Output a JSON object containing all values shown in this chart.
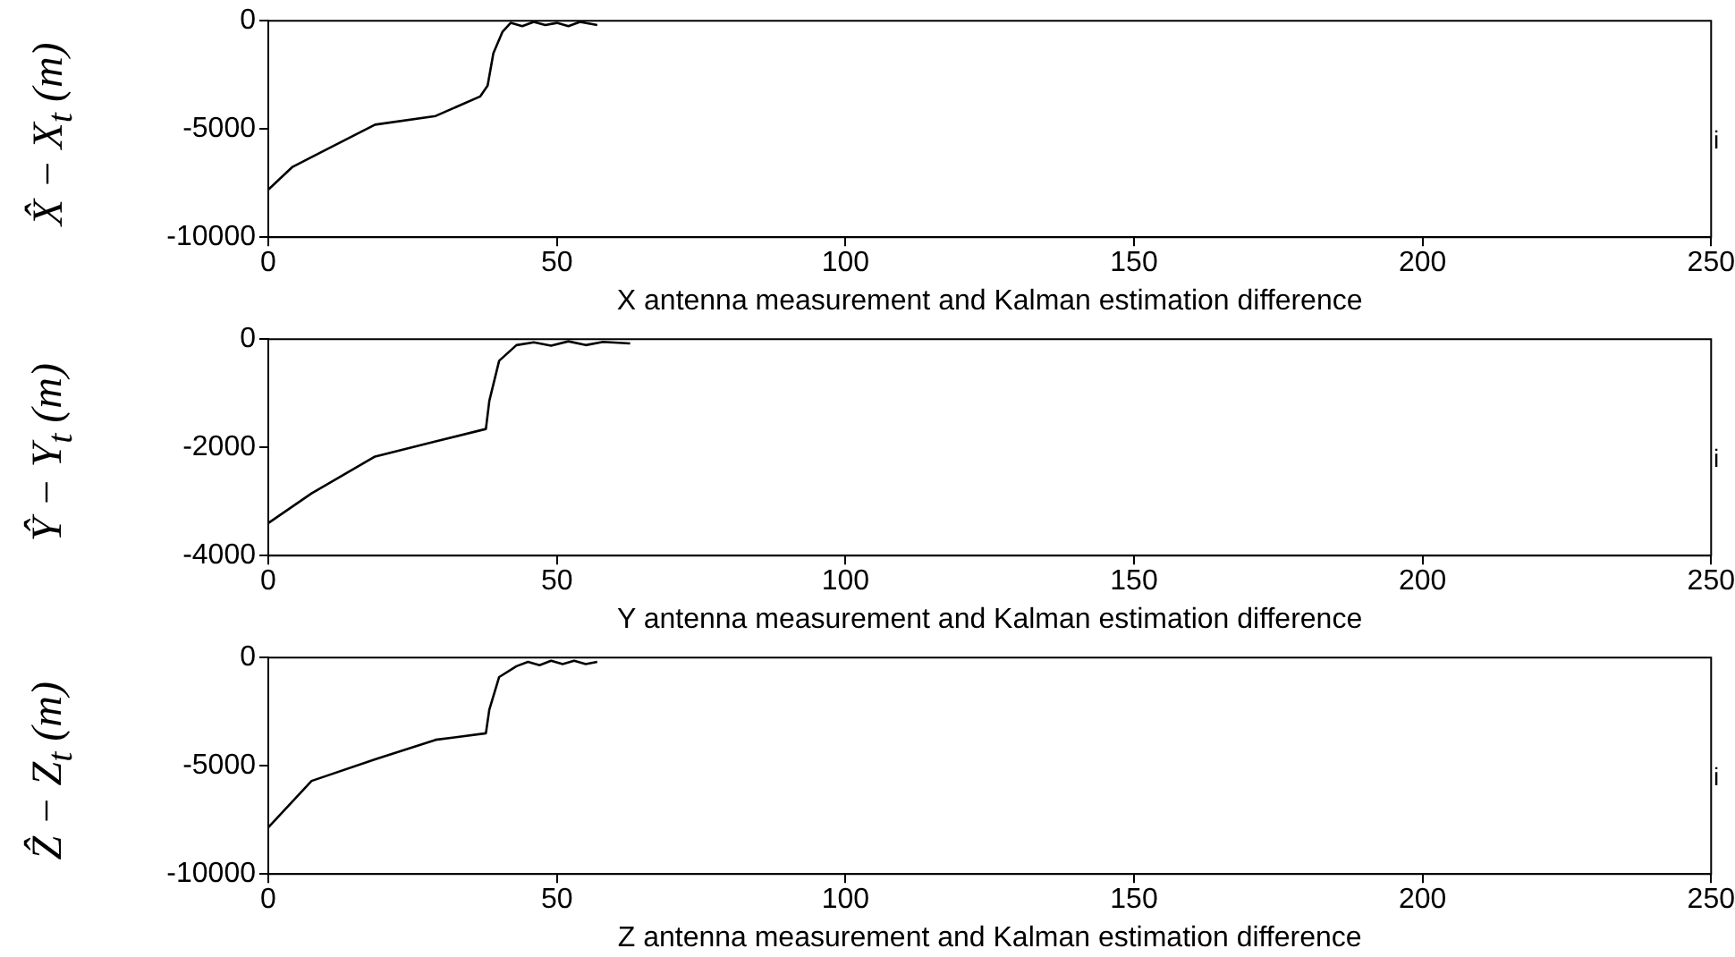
{
  "chart_data": [
    {
      "type": "line",
      "xlabel": "X antenna measurement and Kalman estimation difference",
      "ylabel": "X̂ − X$_{t}$ (m)",
      "annotations": [
        "i"
      ],
      "xlim": [
        0,
        250
      ],
      "xticks": [
        0,
        50,
        100,
        150,
        200,
        250
      ],
      "ylim": [
        -10000,
        0
      ],
      "yticks": [
        -10000,
        -5000,
        0
      ],
      "grid": false,
      "legend": false,
      "series": [
        {
          "color": "#000000",
          "x": [
            0,
            4.2,
            9.7,
            18.5,
            29,
            36.7,
            38,
            39,
            40.6,
            42,
            44,
            46,
            48,
            50,
            52,
            54,
            57
          ],
          "values": [
            -7800,
            -6750,
            -6000,
            -4800,
            -4400,
            -3500,
            -3000,
            -1500,
            -500,
            -100,
            -250,
            -50,
            -200,
            -100,
            -250,
            -50,
            -200
          ]
        }
      ]
    },
    {
      "type": "line",
      "xlabel": "Y antenna measurement and Kalman estimation difference",
      "ylabel": "Ŷ − Y$_{t}$ (m)",
      "annotations": [
        "i"
      ],
      "xlim": [
        0,
        250
      ],
      "xticks": [
        0,
        50,
        100,
        150,
        200,
        250
      ],
      "ylim": [
        -4000,
        0
      ],
      "yticks": [
        -4000,
        -2000,
        0
      ],
      "grid": false,
      "legend": false,
      "series": [
        {
          "color": "#000000",
          "x": [
            0,
            7.5,
            18.5,
            29,
            37.7,
            38.3,
            40,
            43,
            46,
            49,
            52,
            55,
            58,
            62.7
          ],
          "values": [
            -3400,
            -2850,
            -2170,
            -1890,
            -1660,
            -1140,
            -400,
            -110,
            -60,
            -120,
            -40,
            -110,
            -50,
            -80
          ]
        }
      ]
    },
    {
      "type": "line",
      "xlabel": "Z antenna measurement and Kalman estimation difference",
      "ylabel": "Ẑ − Z$_{t}$ (m)",
      "annotations": [
        "i"
      ],
      "xlim": [
        0,
        250
      ],
      "xticks": [
        0,
        50,
        100,
        150,
        200,
        250
      ],
      "ylim": [
        -10000,
        0
      ],
      "yticks": [
        -10000,
        -5000,
        0
      ],
      "grid": false,
      "legend": false,
      "series": [
        {
          "color": "#000000",
          "x": [
            0,
            7.5,
            18.5,
            29,
            37.7,
            38.3,
            40,
            43,
            45,
            47,
            49,
            51,
            53,
            55,
            57
          ],
          "values": [
            -7850,
            -5700,
            -4700,
            -3800,
            -3500,
            -2400,
            -900,
            -400,
            -200,
            -350,
            -150,
            -300,
            -150,
            -300,
            -200
          ]
        }
      ]
    }
  ]
}
